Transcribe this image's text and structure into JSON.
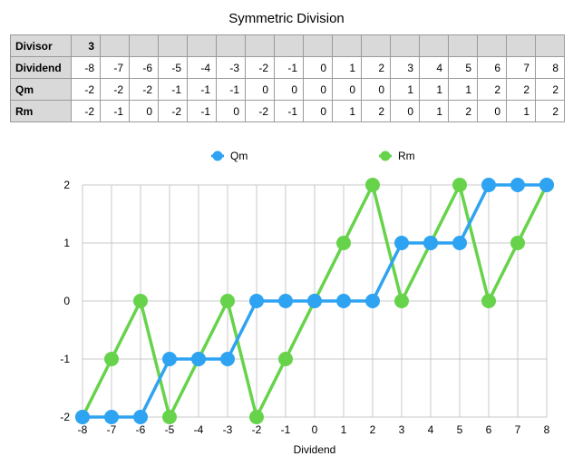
{
  "title": "Symmetric Division",
  "table": {
    "divisor_label": "Divisor",
    "divisor_value": "3",
    "rows": [
      {
        "label": "Dividend",
        "values": [
          "-8",
          "-7",
          "-6",
          "-5",
          "-4",
          "-3",
          "-2",
          "-1",
          "0",
          "1",
          "2",
          "3",
          "4",
          "5",
          "6",
          "7",
          "8"
        ]
      },
      {
        "label": "Qm",
        "values": [
          "-2",
          "-2",
          "-2",
          "-1",
          "-1",
          "-1",
          "0",
          "0",
          "0",
          "0",
          "0",
          "1",
          "1",
          "1",
          "2",
          "2",
          "2"
        ]
      },
      {
        "label": "Rm",
        "values": [
          "-2",
          "-1",
          "0",
          "-2",
          "-1",
          "0",
          "-2",
          "-1",
          "0",
          "1",
          "2",
          "0",
          "1",
          "2",
          "0",
          "1",
          "2"
        ]
      }
    ]
  },
  "chart_data": {
    "type": "line",
    "x": [
      -8,
      -7,
      -6,
      -5,
      -4,
      -3,
      -2,
      -1,
      0,
      1,
      2,
      3,
      4,
      5,
      6,
      7,
      8
    ],
    "series": [
      {
        "name": "Qm",
        "color": "#2ea3f2",
        "values": [
          -2,
          -2,
          -2,
          -1,
          -1,
          -1,
          0,
          0,
          0,
          0,
          0,
          1,
          1,
          1,
          2,
          2,
          2
        ]
      },
      {
        "name": "Rm",
        "color": "#66d34a",
        "values": [
          -2,
          -1,
          0,
          -2,
          -1,
          0,
          -2,
          -1,
          0,
          1,
          2,
          0,
          1,
          2,
          0,
          1,
          2
        ]
      }
    ],
    "xlabel": "Dividend",
    "ylabel": "",
    "xlim": [
      -8,
      8
    ],
    "ylim": [
      -2,
      2
    ],
    "yticks": [
      -2,
      -1,
      0,
      1,
      2
    ],
    "legend": "top-center",
    "grid": "vertical and horizontal",
    "grid_color": "#c8c8c8"
  }
}
